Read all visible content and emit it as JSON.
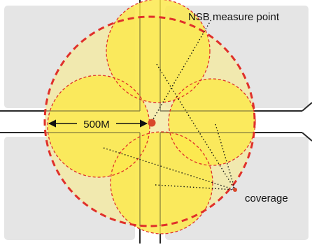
{
  "labels": {
    "measure_point": "NSB measure point",
    "distance": "500M",
    "coverage": "coverage"
  },
  "colors": {
    "block": "#e5e5e5",
    "road_line": "#2a2a2a",
    "coverage_area": "#f3eaa6",
    "coverage_circle": "#fbe94e",
    "dashed_outline": "#e0302a",
    "center": "#d9472a"
  }
}
